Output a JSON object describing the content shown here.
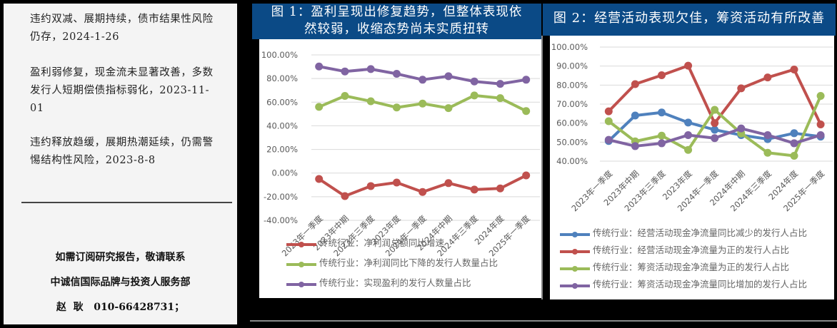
{
  "left_panel": {
    "news": [
      {
        "text": "违约双减、展期持续，债市结果性风险仍存，2024-1-26"
      },
      {
        "text": "盈利弱修复，现金流未显著改善，多数发行人短期偿债指标弱化，2023-11-01"
      },
      {
        "text": "违约释放趋缓，展期热潮延续，仍需警惕结构性风险，2023-8-8"
      }
    ],
    "contact": {
      "line1": "如需订阅研究报告，敬请联系",
      "line2": "中诚信国际品牌与投资人服务部",
      "line3": "赵  耿   010-66428731；"
    }
  },
  "colors": {
    "title_bg": "#0b4a86",
    "red": "#c0504d",
    "green": "#9bbb59",
    "purple": "#8064a2",
    "blue": "#4f81bd",
    "grid": "#d9d9d9",
    "tick_text": "#595959"
  },
  "chart_data": [
    {
      "type": "line",
      "title": "图 1：盈利呈现出修复趋势，但整体表现依然较弱，收缩态势尚未实质扭转",
      "title_lines": [
        "图 1：盈利呈现出修复趋势，但整体表现依",
        "然较弱，收缩态势尚未实质扭转"
      ],
      "categories": [
        "2023年一季度",
        "2023年中期",
        "2023年三季度",
        "2023年度",
        "2024年一季度",
        "2024年中期",
        "2024年三季度",
        "2024年度",
        "2025年一季度"
      ],
      "yticks": [
        "100.00%",
        "80.00%",
        "60.00%",
        "40.00%",
        "20.00%",
        "0.00%",
        "-20.00%",
        "-40.00%"
      ],
      "ylim": [
        -40,
        100
      ],
      "grid": true,
      "legend_position": "bottom",
      "series": [
        {
          "name": "传统行业：净利润总额同比增速",
          "color": "#c0504d",
          "values": [
            -5.0,
            -19.5,
            -11.0,
            -8.0,
            -16.0,
            -8.5,
            -14.0,
            -13.0,
            -2.0
          ]
        },
        {
          "name": "传统行业：净利润同比下降的发行人数量占比",
          "color": "#9bbb59",
          "values": [
            56.0,
            65.3,
            60.8,
            55.5,
            58.8,
            55.0,
            65.7,
            63.4,
            52.5
          ]
        },
        {
          "name": "传统行业：实现盈利的发行人数量占比",
          "color": "#8064a2",
          "values": [
            90.2,
            86.0,
            88.0,
            84.0,
            79.0,
            82.0,
            77.5,
            75.5,
            79.0
          ]
        }
      ]
    },
    {
      "type": "line",
      "title": "图 2：经营活动表现欠佳，筹资活动有所改善",
      "title_lines": [
        "图 2：经营活动表现欠佳，筹资活动有所改善"
      ],
      "categories": [
        "2023年一季度",
        "2023年中期",
        "2023年三季度",
        "2023年度",
        "2024年一季度",
        "2024年中期",
        "2024年三季度",
        "2024年度",
        "2025年一季度"
      ],
      "yticks": [
        "100.00%",
        "90.00%",
        "80.00%",
        "70.00%",
        "60.00%",
        "50.00%",
        "40.00%"
      ],
      "ylim": [
        40,
        100
      ],
      "grid": true,
      "legend_position": "bottom",
      "series": [
        {
          "name": "传统行业：经营活动现金净流量同比减少的发行人占比",
          "color": "#4f81bd",
          "values": [
            50.6,
            64.0,
            65.6,
            60.3,
            56.5,
            53.7,
            51.6,
            54.7,
            52.9
          ]
        },
        {
          "name": "传统行业：经营活动现金净流量为正的发行人占比",
          "color": "#c0504d",
          "values": [
            66.2,
            80.5,
            85.2,
            90.2,
            60.0,
            78.3,
            84.0,
            88.2,
            59.3
          ]
        },
        {
          "name": "传统行业：筹资活动现金净流量为正的发行人占比",
          "color": "#9bbb59",
          "values": [
            61.0,
            50.4,
            53.4,
            45.9,
            67.0,
            54.6,
            44.4,
            42.8,
            74.3
          ]
        },
        {
          "name": "传统行业：筹资活动现金净流量同比增加的发行人占比",
          "color": "#8064a2",
          "values": [
            51.2,
            47.9,
            49.4,
            53.7,
            52.1,
            57.2,
            53.7,
            49.4,
            53.7
          ]
        }
      ]
    }
  ]
}
